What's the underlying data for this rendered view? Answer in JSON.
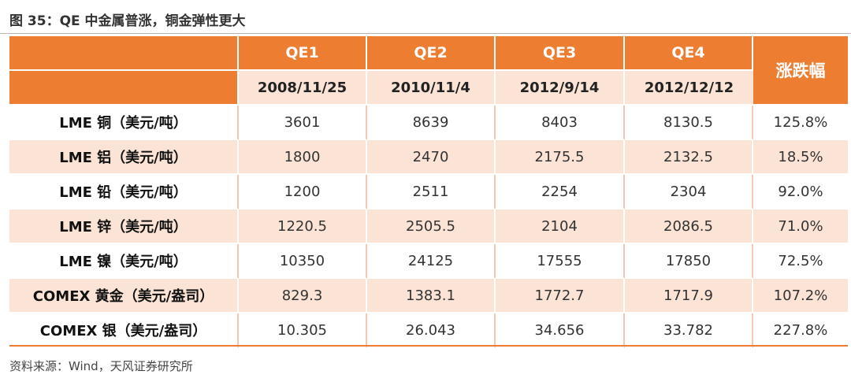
{
  "title": "图 35：QE 中金属普涨，铜金弹性更大",
  "table": {
    "qe_labels": [
      "QE1",
      "QE2",
      "QE3",
      "QE4"
    ],
    "dates": [
      "2008/11/25",
      "2010/11/4",
      "2012/9/14",
      "2012/12/12"
    ],
    "change_header": "涨跌幅",
    "rows": [
      {
        "label": "LME 铜（美元/吨）",
        "values": [
          "3601",
          "8639",
          "8403",
          "8130.5"
        ],
        "change": "125.8%"
      },
      {
        "label": "LME 铝（美元/吨）",
        "values": [
          "1800",
          "2470",
          "2175.5",
          "2132.5"
        ],
        "change": "18.5%"
      },
      {
        "label": "LME 铅（美元/吨）",
        "values": [
          "1200",
          "2511",
          "2254",
          "2304"
        ],
        "change": "92.0%"
      },
      {
        "label": "LME 锌（美元/吨）",
        "values": [
          "1220.5",
          "2505.5",
          "2104",
          "2086.5"
        ],
        "change": "71.0%"
      },
      {
        "label": "LME 镍（美元/吨）",
        "values": [
          "10350",
          "24125",
          "17555",
          "17850"
        ],
        "change": "72.5%"
      },
      {
        "label": "COMEX 黄金（美元/盎司）",
        "values": [
          "829.3",
          "1383.1",
          "1772.7",
          "1717.9"
        ],
        "change": "107.2%"
      },
      {
        "label": "COMEX 银（美元/盎司）",
        "values": [
          "10.305",
          "26.043",
          "34.656",
          "33.782"
        ],
        "change": "227.8%"
      }
    ]
  },
  "source": "资料来源：Wind，天风证券研究所",
  "colors": {
    "accent": "#ed7d31",
    "band": "#fbe3d6"
  }
}
